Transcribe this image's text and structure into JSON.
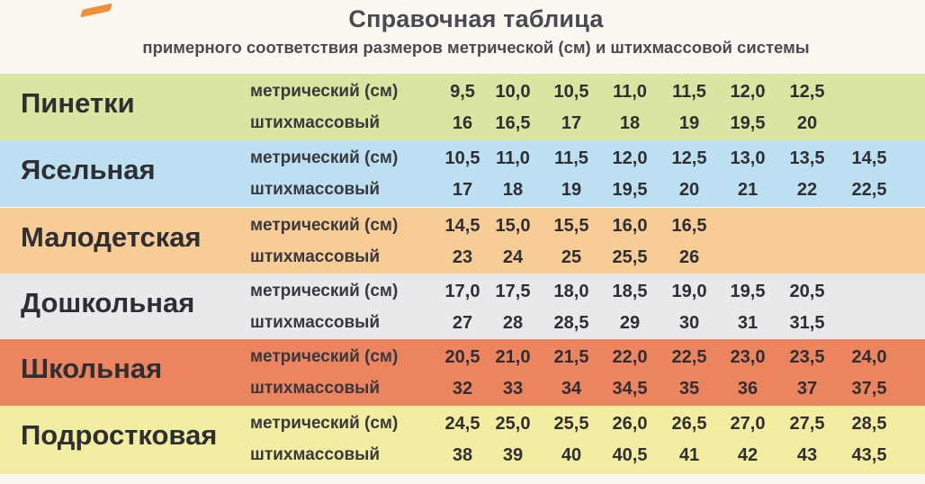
{
  "header": {
    "title": "Справочная таблица",
    "subtitle": "примерного соответствия размеров метрической (см) и штихмассовой системы"
  },
  "labels": {
    "metric": "метрический (см)",
    "stich": "штихмассовый"
  },
  "colors": {
    "pinetki": "#d9e6a1",
    "yaselnaya": "#bcdff2",
    "malodetskaya": "#f7cc96",
    "doshkolnaya": "#e9e8ea",
    "shkolnaya": "#ec8460",
    "podrostkovaya": "#f3eda1",
    "accent": "#ee8f3a"
  },
  "rows": [
    {
      "category": "Пинетки",
      "metric": [
        "9,5",
        "10,0",
        "10,5",
        "11,0",
        "11,5",
        "12,0",
        "12,5"
      ],
      "stich": [
        "16",
        "16,5",
        "17",
        "18",
        "19",
        "19,5",
        "20"
      ]
    },
    {
      "category": "Ясельная",
      "metric": [
        "10,5",
        "11,0",
        "11,5",
        "12,0",
        "12,5",
        "13,0",
        "13,5",
        "14,5"
      ],
      "stich": [
        "17",
        "18",
        "19",
        "19,5",
        "20",
        "21",
        "22",
        "22,5"
      ]
    },
    {
      "category": "Малодетская",
      "metric": [
        "14,5",
        "15,0",
        "15,5",
        "16,0",
        "16,5"
      ],
      "stich": [
        "23",
        "24",
        "25",
        "25,5",
        "26"
      ]
    },
    {
      "category": "Дошкольная",
      "metric": [
        "17,0",
        "17,5",
        "18,0",
        "18,5",
        "19,0",
        "19,5",
        "20,5"
      ],
      "stich": [
        "27",
        "28",
        "28,5",
        "29",
        "30",
        "31",
        "31,5"
      ]
    },
    {
      "category": "Школьная",
      "metric": [
        "20,5",
        "21,0",
        "21,5",
        "22,0",
        "22,5",
        "23,0",
        "23,5",
        "24,0"
      ],
      "stich": [
        "32",
        "33",
        "34",
        "34,5",
        "35",
        "36",
        "37",
        "37,5"
      ]
    },
    {
      "category": "Подростковая",
      "metric": [
        "24,5",
        "25,0",
        "25,5",
        "26,0",
        "26,5",
        "27,0",
        "27,5",
        "28,5"
      ],
      "stich": [
        "38",
        "39",
        "40",
        "40,5",
        "41",
        "42",
        "43",
        "43,5"
      ]
    }
  ]
}
